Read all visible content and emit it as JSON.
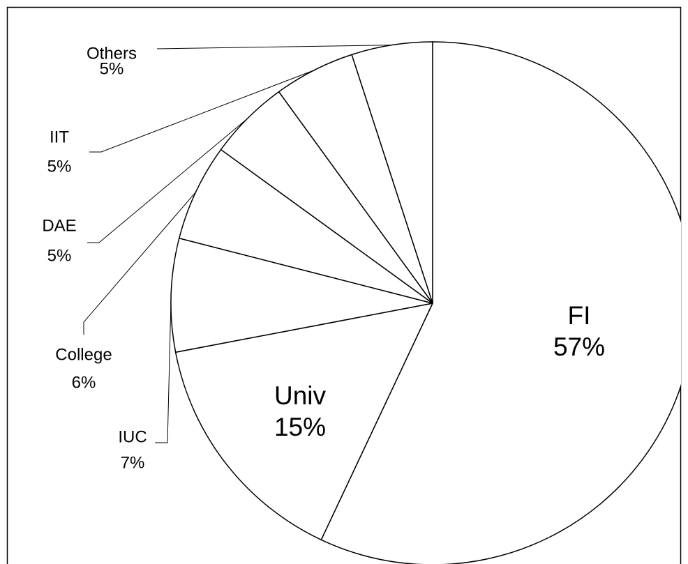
{
  "chart_data": {
    "type": "pie",
    "categories": [
      "FI",
      "Univ",
      "IUC",
      "College",
      "DAE",
      "IIT",
      "Others"
    ],
    "values": [
      57,
      15,
      7,
      6,
      5,
      5,
      5
    ],
    "value_labels": [
      "57%",
      "15%",
      "7%",
      "6%",
      "5%",
      "5%",
      "5%"
    ],
    "color": "#ffffff"
  }
}
